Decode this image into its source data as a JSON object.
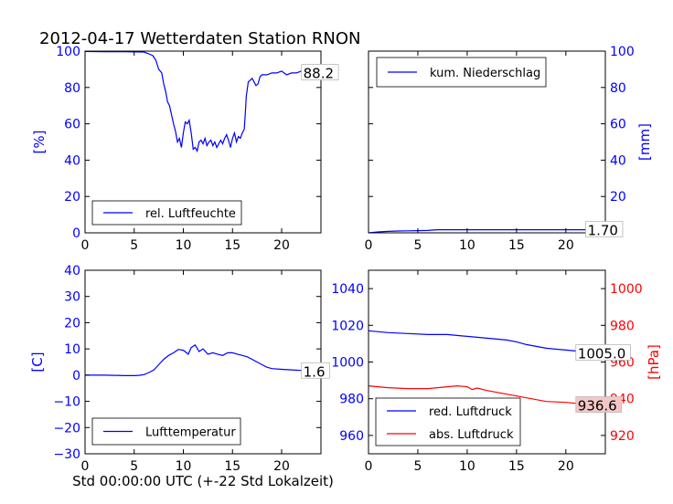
{
  "title": "2012-04-17 Wetterdaten Station RNON",
  "xlabel_shared": "Std 00:00:00 UTC (+-22 Std Lokalzeit)",
  "colors": {
    "blue": "#0000ff",
    "red": "#ff0000",
    "black": "#000000"
  },
  "chart_data": [
    {
      "type": "line",
      "panel": "top-left",
      "ylabel": "[%]",
      "xlim": [
        0,
        24
      ],
      "ylim": [
        0,
        100
      ],
      "xticks": [
        0,
        5,
        10,
        15,
        20
      ],
      "yticks": [
        0,
        20,
        40,
        60,
        80,
        100
      ],
      "ytick_side": "left",
      "ytick_color": "blue",
      "legend": {
        "position": "lower-left"
      },
      "annotations": [
        {
          "text": "88.2",
          "x": 22.2,
          "y": 88.2
        }
      ],
      "series": [
        {
          "name": "rel. Luftfeuchte",
          "color": "blue",
          "x": [
            0,
            2,
            4,
            6,
            6.5,
            6.9,
            7.2,
            7.5,
            7.8,
            8.0,
            8.2,
            8.4,
            8.6,
            8.8,
            9.0,
            9.2,
            9.4,
            9.6,
            9.8,
            10.0,
            10.2,
            10.4,
            10.6,
            10.8,
            11.0,
            11.2,
            11.4,
            11.6,
            11.8,
            12.0,
            12.2,
            12.4,
            12.6,
            12.8,
            13.0,
            13.2,
            13.4,
            13.6,
            13.8,
            14.0,
            14.2,
            14.4,
            14.6,
            14.8,
            15.0,
            15.2,
            15.4,
            15.6,
            15.8,
            16.0,
            16.2,
            16.3,
            16.4,
            16.6,
            16.8,
            17.0,
            17.2,
            17.4,
            17.6,
            17.8,
            18.0,
            18.5,
            19.0,
            19.5,
            20.0,
            20.5,
            21.0,
            21.5,
            22.0,
            22.5,
            23.0,
            23.5,
            24.0
          ],
          "values": [
            99.8,
            99.7,
            99.7,
            99.5,
            98.5,
            97.5,
            95,
            90,
            88,
            82,
            78,
            72,
            70,
            65,
            60,
            56,
            50,
            52,
            47,
            55,
            61,
            60,
            62,
            55,
            46,
            47,
            45,
            50,
            51,
            49,
            52,
            48,
            50,
            51,
            48,
            50,
            47,
            49,
            51,
            49,
            52,
            54,
            51,
            47,
            52,
            55,
            50,
            53,
            52,
            55,
            57,
            65,
            75,
            83,
            84,
            85,
            83,
            81,
            82,
            86,
            87,
            87,
            88,
            88,
            89,
            87,
            88,
            88,
            89,
            87,
            88,
            87,
            88.2
          ]
        }
      ]
    },
    {
      "type": "line",
      "panel": "top-right",
      "ylabel": "[mm]",
      "xlim": [
        0,
        24
      ],
      "ylim": [
        0,
        100
      ],
      "xticks": [
        0,
        5,
        10,
        15,
        20
      ],
      "yticks": [
        0,
        20,
        40,
        60,
        80,
        100
      ],
      "ytick_side": "right",
      "ytick_color": "blue",
      "legend": {
        "position": "upper-left"
      },
      "annotations": [
        {
          "text": "1.70",
          "x": 22.2,
          "y": 1.7
        }
      ],
      "series": [
        {
          "name": "kum. Niederschlag",
          "color": "blue",
          "x": [
            0,
            1,
            2,
            3,
            4,
            5,
            6,
            6.5,
            7,
            8,
            10,
            12,
            14,
            16,
            18,
            20,
            22,
            24
          ],
          "values": [
            0,
            0.5,
            0.8,
            1.0,
            1.1,
            1.2,
            1.3,
            1.5,
            1.7,
            1.7,
            1.7,
            1.7,
            1.7,
            1.7,
            1.7,
            1.7,
            1.7,
            1.7
          ]
        }
      ]
    },
    {
      "type": "line",
      "panel": "bottom-left",
      "ylabel": "[C]",
      "xlim": [
        0,
        24
      ],
      "ylim": [
        -30,
        40
      ],
      "xticks": [
        0,
        5,
        10,
        15,
        20
      ],
      "yticks": [
        -30,
        -20,
        -10,
        0,
        10,
        20,
        30,
        40
      ],
      "ytick_side": "left",
      "ytick_color": "blue",
      "legend": {
        "position": "lower-left"
      },
      "annotations": [
        {
          "text": "1.6",
          "x": 22.2,
          "y": 1.6
        }
      ],
      "series": [
        {
          "name": "Lufttemperatur",
          "color": "blue",
          "x": [
            0,
            1,
            2,
            3,
            4,
            5,
            5.5,
            6,
            6.5,
            7,
            7.5,
            8,
            8.5,
            9,
            9.5,
            10,
            10.5,
            10.8,
            11.2,
            11.6,
            12,
            12.5,
            13,
            13.5,
            14,
            14.5,
            15,
            15.5,
            16,
            16.5,
            17,
            17.5,
            18,
            18.5,
            19,
            20,
            21,
            22,
            23,
            24
          ],
          "values": [
            0,
            0,
            0,
            -0.1,
            -0.2,
            -0.2,
            -0.1,
            0.2,
            1.0,
            2.0,
            4.0,
            6.0,
            7.5,
            8.5,
            9.8,
            9.5,
            8.0,
            10.5,
            11.5,
            9.0,
            10.0,
            8.0,
            8.5,
            8.0,
            7.5,
            8.5,
            8.5,
            8.0,
            7.5,
            7.0,
            6.0,
            5.0,
            4.0,
            3.0,
            2.5,
            2.2,
            2.0,
            1.8,
            1.7,
            1.6
          ]
        }
      ]
    },
    {
      "type": "line",
      "panel": "bottom-right",
      "xlim": [
        0,
        24
      ],
      "ylim": [
        950,
        1050
      ],
      "xticks": [
        0,
        5,
        10,
        15,
        20
      ],
      "yticks": [
        960,
        980,
        1000,
        1020,
        1040
      ],
      "ytick_side": "left",
      "ytick_color": "blue",
      "ylabel_right": "[hPa]",
      "ylim_right": [
        910,
        1010
      ],
      "yticks_right": [
        920,
        940,
        960,
        980,
        1000
      ],
      "ytick_right_color": "red",
      "legend": {
        "position": "lower-left"
      },
      "annotations": [
        {
          "text": "1005.0",
          "x": 21.2,
          "y": 1005.0,
          "axis": "left"
        },
        {
          "text": "936.6",
          "x": 21.2,
          "y": 936.6,
          "axis": "right",
          "background": "#f4c7c7"
        }
      ],
      "series": [
        {
          "name": "red. Luftdruck",
          "color": "blue",
          "axis": "left",
          "x": [
            0,
            2,
            4,
            6,
            8,
            10,
            12,
            14,
            15,
            16,
            18,
            20,
            22,
            24
          ],
          "values": [
            1017,
            1016,
            1015.5,
            1015,
            1015,
            1014,
            1013,
            1012,
            1011,
            1009.5,
            1007.5,
            1006.5,
            1005.5,
            1005.0
          ]
        },
        {
          "name": "abs. Luftdruck",
          "color": "red",
          "axis": "right",
          "x": [
            0,
            2,
            4,
            6,
            8,
            9,
            10,
            10.5,
            11,
            12,
            14,
            16,
            18,
            20,
            22,
            24
          ],
          "values": [
            947,
            946,
            945.5,
            945.5,
            946.5,
            947,
            946.5,
            945,
            945.8,
            944.5,
            942.5,
            940.5,
            938.5,
            938,
            937,
            936.6
          ]
        }
      ]
    }
  ]
}
